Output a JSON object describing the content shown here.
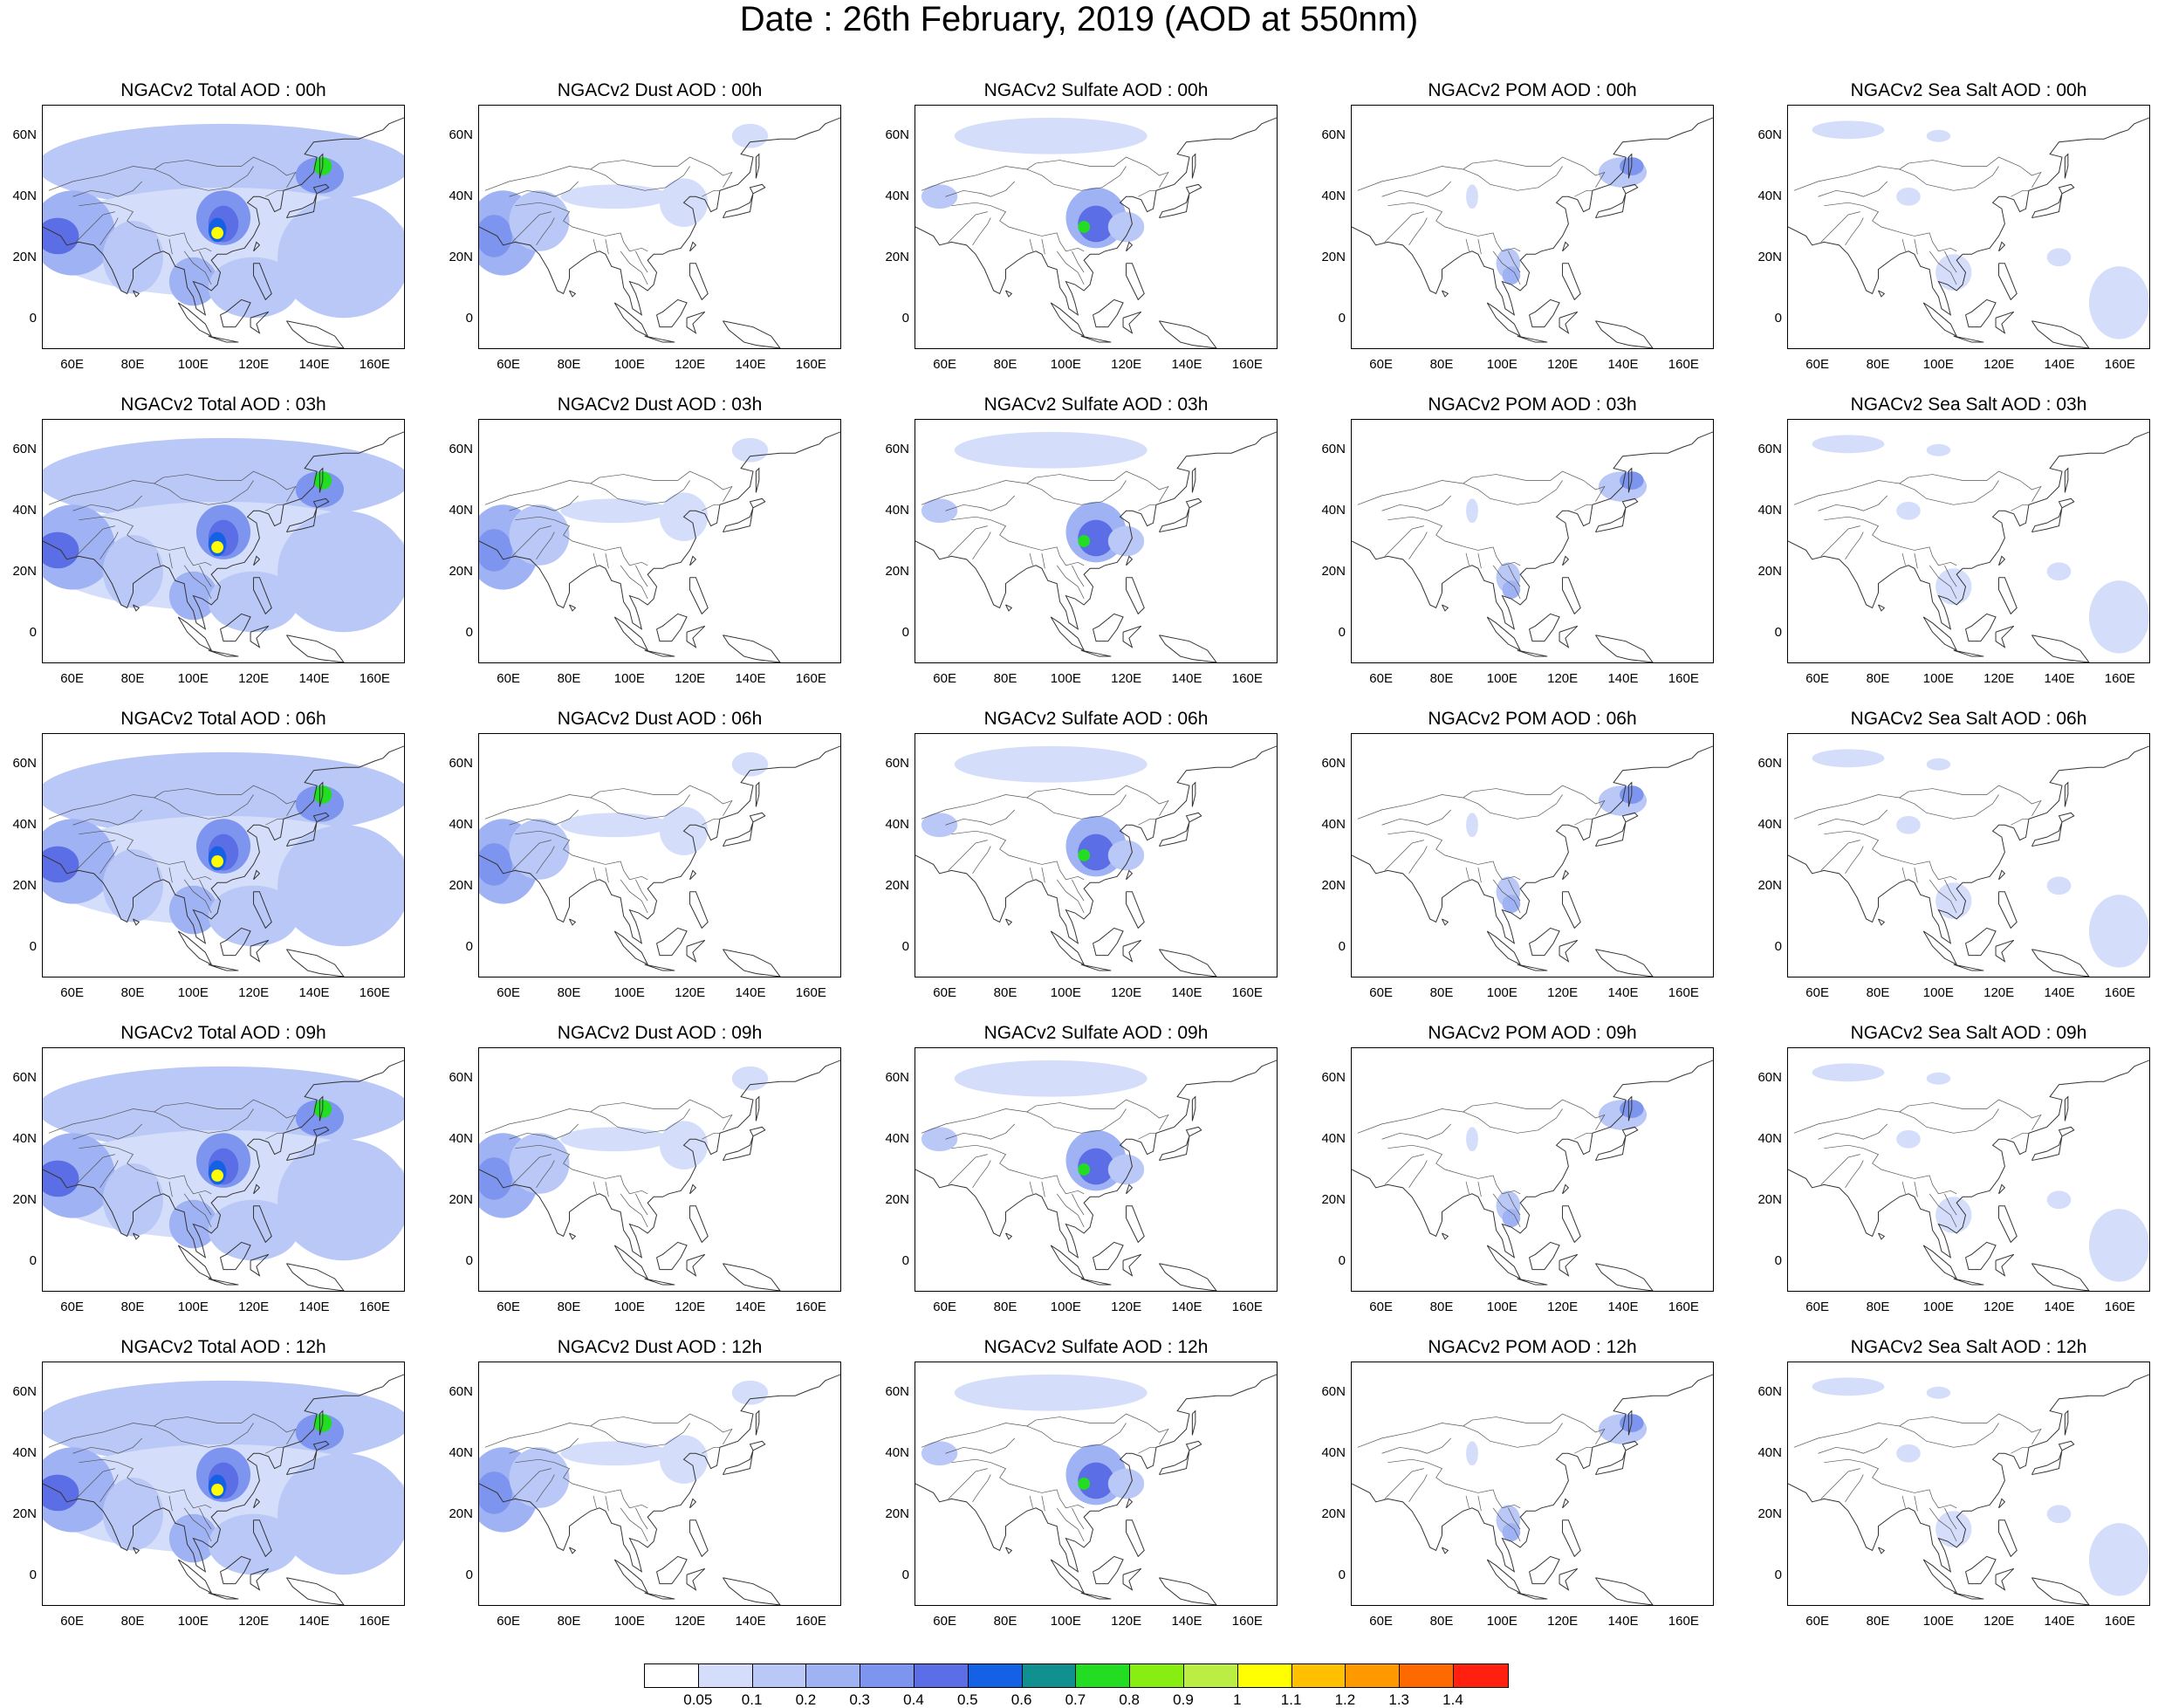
{
  "title": "Date : 26th February, 2019 (AOD at 550nm)",
  "map": {
    "lat_ticks": [
      "60N",
      "40N",
      "20N",
      "0"
    ],
    "lat_values": [
      60,
      40,
      20,
      0
    ],
    "lon_ticks": [
      "60E",
      "80E",
      "100E",
      "120E",
      "140E",
      "160E"
    ],
    "lon_values": [
      60,
      80,
      100,
      120,
      140,
      160
    ],
    "lon_range": [
      50,
      170
    ],
    "lat_range": [
      -10,
      70
    ]
  },
  "rows": [
    {
      "panels": [
        {
          "title": "NGACv2 Total AOD : 00h",
          "species": "total",
          "hour": "00"
        },
        {
          "title": "NGACv2 Dust AOD : 00h",
          "species": "dust",
          "hour": "00"
        },
        {
          "title": "NGACv2 Sulfate AOD : 00h",
          "species": "sulfate",
          "hour": "00"
        },
        {
          "title": "NGACv2 POM AOD : 00h",
          "species": "pom",
          "hour": "00"
        },
        {
          "title": "NGACv2 Sea Salt AOD : 00h",
          "species": "seasalt",
          "hour": "00"
        }
      ]
    },
    {
      "panels": [
        {
          "title": "NGACv2 Total AOD : 03h",
          "species": "total",
          "hour": "03"
        },
        {
          "title": "NGACv2 Dust AOD : 03h",
          "species": "dust",
          "hour": "03"
        },
        {
          "title": "NGACv2 Sulfate AOD : 03h",
          "species": "sulfate",
          "hour": "03"
        },
        {
          "title": "NGACv2 POM AOD : 03h",
          "species": "pom",
          "hour": "03"
        },
        {
          "title": "NGACv2 Sea Salt AOD : 03h",
          "species": "seasalt",
          "hour": "03"
        }
      ]
    },
    {
      "panels": [
        {
          "title": "NGACv2 Total AOD : 06h",
          "species": "total",
          "hour": "06"
        },
        {
          "title": "NGACv2 Dust AOD : 06h",
          "species": "dust",
          "hour": "06"
        },
        {
          "title": "NGACv2 Sulfate AOD : 06h",
          "species": "sulfate",
          "hour": "06"
        },
        {
          "title": "NGACv2 POM AOD : 06h",
          "species": "pom",
          "hour": "06"
        },
        {
          "title": "NGACv2 Sea Salt AOD : 06h",
          "species": "seasalt",
          "hour": "06"
        }
      ]
    },
    {
      "panels": [
        {
          "title": "NGACv2 Total AOD : 09h",
          "species": "total",
          "hour": "09"
        },
        {
          "title": "NGACv2 Dust AOD : 09h",
          "species": "dust",
          "hour": "09"
        },
        {
          "title": "NGACv2 Sulfate AOD : 09h",
          "species": "sulfate",
          "hour": "09"
        },
        {
          "title": "NGACv2 POM AOD : 09h",
          "species": "pom",
          "hour": "09"
        },
        {
          "title": "NGACv2 Sea Salt  AOD : 09h",
          "species": "seasalt",
          "hour": "09"
        }
      ]
    },
    {
      "panels": [
        {
          "title": "NGACv2 Total AOD  : 12h",
          "species": "total",
          "hour": "12"
        },
        {
          "title": "NGACv2 Dust AOD : 12h",
          "species": "dust",
          "hour": "12"
        },
        {
          "title": "NGACv2 Sulfate AOD : 12h",
          "species": "sulfate",
          "hour": "12"
        },
        {
          "title": "NGACv2 POM  AOD : 12h",
          "species": "pom",
          "hour": "12"
        },
        {
          "title": "NGACv2 Sea Salt  AOD : 12h",
          "species": "seasalt",
          "hour": "12"
        }
      ]
    }
  ],
  "colorbar": {
    "colors": [
      "#ffffff",
      "#d4defa",
      "#b9c8f6",
      "#9fb2f3",
      "#7e95ef",
      "#5c6ee6",
      "#1561e6",
      "#119090",
      "#22dd22",
      "#88ee11",
      "#bbee44",
      "#ffff00",
      "#ffc000",
      "#ff9900",
      "#ff6a00",
      "#ff2010"
    ],
    "labels": [
      "0.05",
      "0.1",
      "0.2",
      "0.3",
      "0.4",
      "0.5",
      "0.6",
      "0.7",
      "0.8",
      "0.9",
      "1",
      "1.1",
      "1.2",
      "1.3",
      "1.4"
    ]
  }
}
